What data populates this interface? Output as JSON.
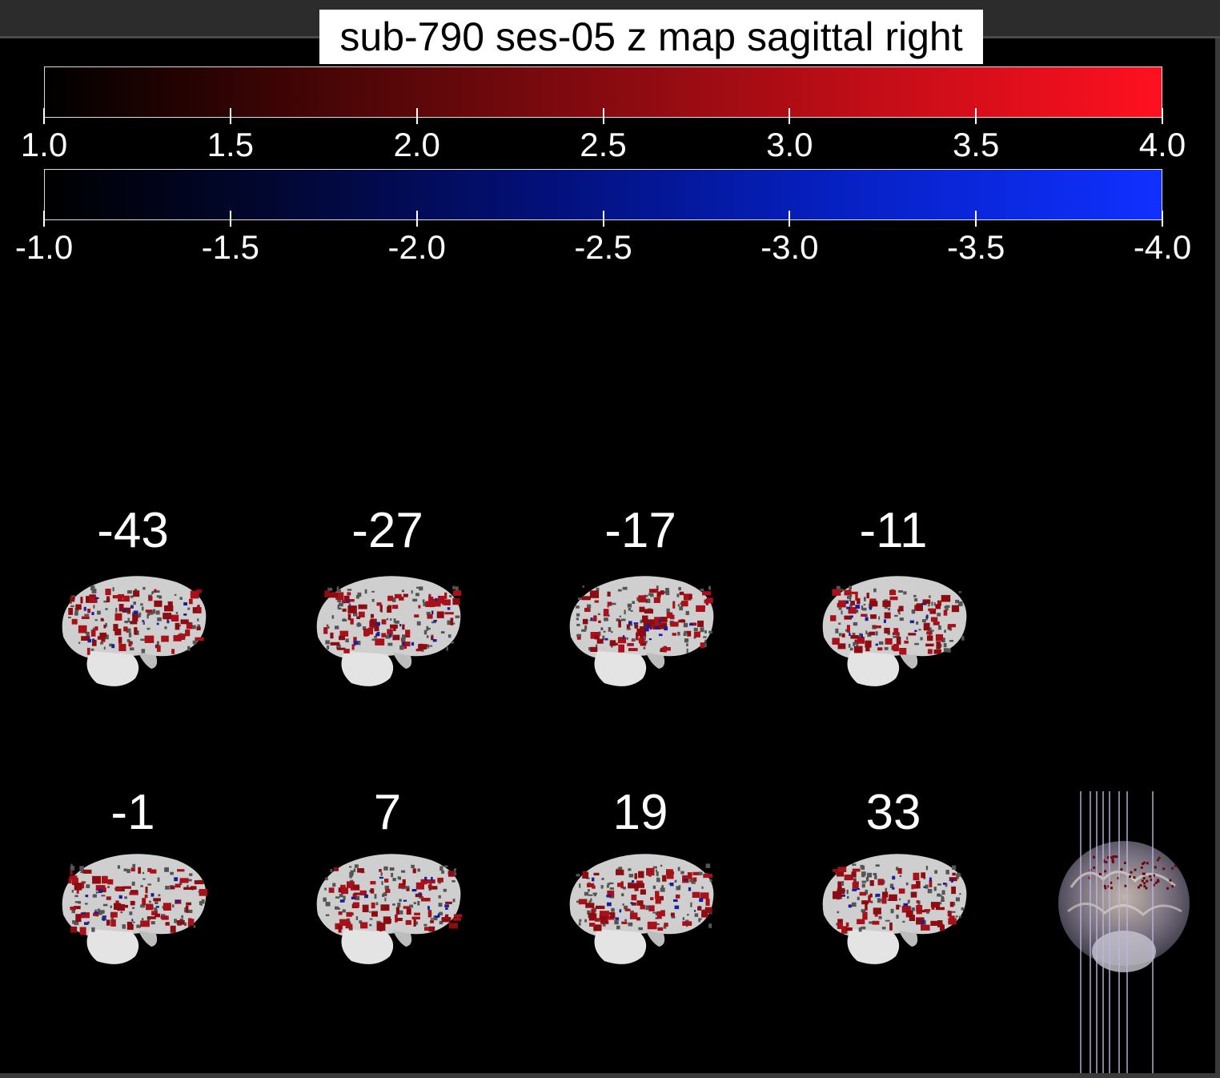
{
  "title": "sub-790 ses-05 z map sagittal right",
  "colorbars": {
    "positive": {
      "ticks": [
        "1.0",
        "1.5",
        "2.0",
        "2.5",
        "3.0",
        "3.5",
        "4.0"
      ],
      "color": "#ff1020"
    },
    "negative": {
      "ticks": [
        "-1.0",
        "-1.5",
        "-2.0",
        "-2.5",
        "-3.0",
        "-3.5",
        "-4.0"
      ],
      "color": "#1030ff"
    }
  },
  "slices": [
    {
      "label": "-43"
    },
    {
      "label": "-27"
    },
    {
      "label": "-17"
    },
    {
      "label": "-11"
    },
    {
      "label": "-1"
    },
    {
      "label": "7"
    },
    {
      "label": "19"
    },
    {
      "label": "33"
    }
  ],
  "glass_brain": {
    "slice_lines": 8
  }
}
